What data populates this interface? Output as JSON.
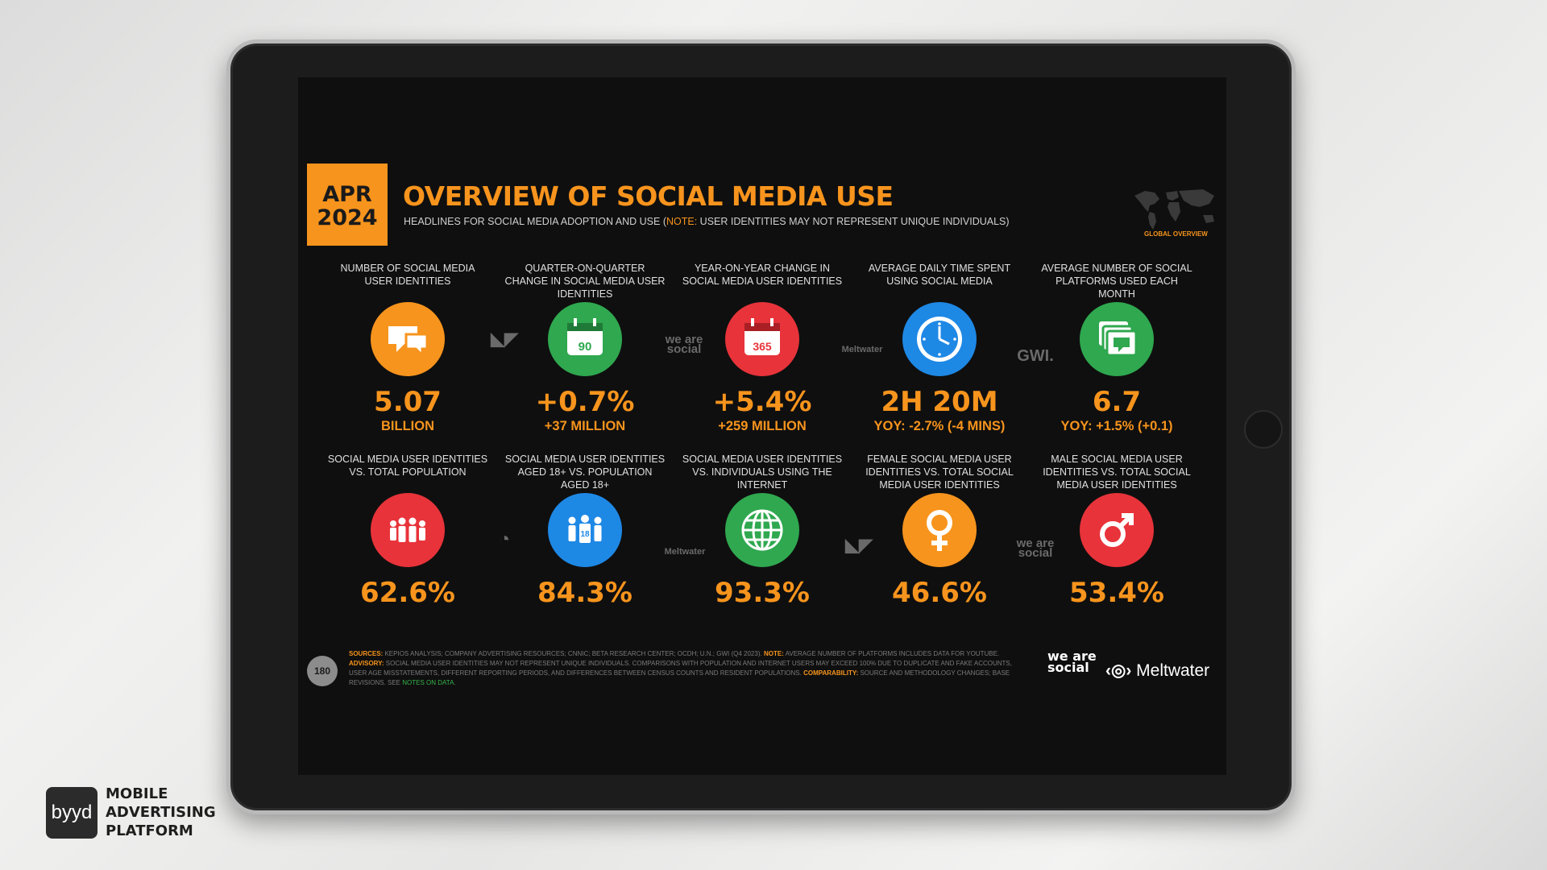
{
  "screen": {
    "date_month": "APR",
    "date_year": "2024",
    "title": "OVERVIEW OF SOCIAL MEDIA USE",
    "subtitle_pre": "HEADLINES FOR SOCIAL MEDIA ADOPTION AND USE (",
    "subtitle_note": "NOTE:",
    "subtitle_post": " USER IDENTITIES MAY NOT REPRESENT UNIQUE INDIVIDUALS)",
    "map_label": "GLOBAL OVERVIEW",
    "top_stats": [
      {
        "label": "NUMBER OF SOCIAL MEDIA USER IDENTITIES",
        "value": "5.07",
        "sub": "BILLION",
        "icon": "speech-bubbles-icon",
        "color": "#f7941d"
      },
      {
        "label": "QUARTER-ON-QUARTER CHANGE IN SOCIAL MEDIA USER IDENTITIES",
        "value": "+0.7%",
        "sub": "+37 MILLION",
        "icon": "calendar-90-icon",
        "icon_text": "90",
        "color": "#2fa84f"
      },
      {
        "label": "YEAR-ON-YEAR CHANGE IN SOCIAL MEDIA USER IDENTITIES",
        "value": "+5.4%",
        "sub": "+259 MILLION",
        "icon": "calendar-365-icon",
        "icon_text": "365",
        "color": "#e8333a"
      },
      {
        "label": "AVERAGE DAILY TIME SPENT USING SOCIAL MEDIA",
        "value": "2H 20M",
        "sub": "YOY: -2.7% (-4 MINS)",
        "icon": "clock-icon",
        "color": "#1e88e5"
      },
      {
        "label": "AVERAGE NUMBER OF SOCIAL PLATFORMS USED EACH MONTH",
        "value": "6.7",
        "sub": "YOY: +1.5% (+0.1)",
        "icon": "stacked-windows-icon",
        "color": "#2fa84f"
      }
    ],
    "bottom_stats": [
      {
        "label": "SOCIAL MEDIA USER IDENTITIES vs. TOTAL POPULATION",
        "value": "62.6%",
        "icon": "population-icon",
        "color": "#e8333a"
      },
      {
        "label": "SOCIAL MEDIA USER IDENTITIES AGED 18+ vs. POPULATION AGED 18+",
        "value": "84.3%",
        "icon": "adults-18-icon",
        "icon_text": "18",
        "color": "#1e88e5"
      },
      {
        "label": "SOCIAL MEDIA USER IDENTITIES vs. INDIVIDUALS USING THE INTERNET",
        "value": "93.3%",
        "icon": "globe-icon",
        "color": "#2fa84f"
      },
      {
        "label": "FEMALE SOCIAL MEDIA USER IDENTITIES vs. TOTAL SOCIAL MEDIA USER IDENTITIES",
        "value": "46.6%",
        "icon": "female-icon",
        "color": "#f7941d"
      },
      {
        "label": "MALE SOCIAL MEDIA USER IDENTITIES vs. TOTAL SOCIAL MEDIA USER IDENTITIES",
        "value": "53.4%",
        "icon": "male-icon",
        "color": "#e8333a"
      }
    ],
    "separators": {
      "kepios": "KEPIOS",
      "we_are_social": "we are social",
      "meltwater": "Meltwater",
      "gwi": "GWI."
    },
    "page_number": "180",
    "fine_print": {
      "sources_label": "SOURCES:",
      "sources_text": " KEPIOS ANALYSIS; COMPANY ADVERTISING RESOURCES; CNNIC; BETA RESEARCH CENTER; OCDH; U.N.; GWI (Q4 2023). ",
      "note_label": "NOTE:",
      "note_text": " AVERAGE NUMBER OF PLATFORMS INCLUDES DATA FOR YOUTUBE. ",
      "advisory_label": "ADVISORY:",
      "advisory_text": " SOCIAL MEDIA USER IDENTITIES MAY NOT REPRESENT UNIQUE INDIVIDUALS. COMPARISONS WITH POPULATION AND INTERNET USERS MAY EXCEED 100% DUE TO DUPLICATE AND FAKE ACCOUNTS, USER AGE MISSTATEMENTS, DIFFERENT REPORTING PERIODS, AND DIFFERENCES BETWEEN CENSUS COUNTS AND RESIDENT POPULATIONS. ",
      "comparability_label": "COMPARABILITY:",
      "comparability_text": " SOURCE AND METHODOLOGY CHANGES; BASE REVISIONS. SEE ",
      "link_text": "NOTES ON DATA",
      "end": "."
    },
    "brand_we_are_social": "we are social",
    "brand_meltwater": "Meltwater"
  },
  "watermark": {
    "logo": "byyd",
    "line1": "MOBILE",
    "line2": "ADVERTISING",
    "line3": "PLATFORM"
  },
  "colors": {
    "accent": "#f7941d",
    "green": "#2fa84f",
    "red": "#e8333a",
    "blue": "#1e88e5"
  }
}
